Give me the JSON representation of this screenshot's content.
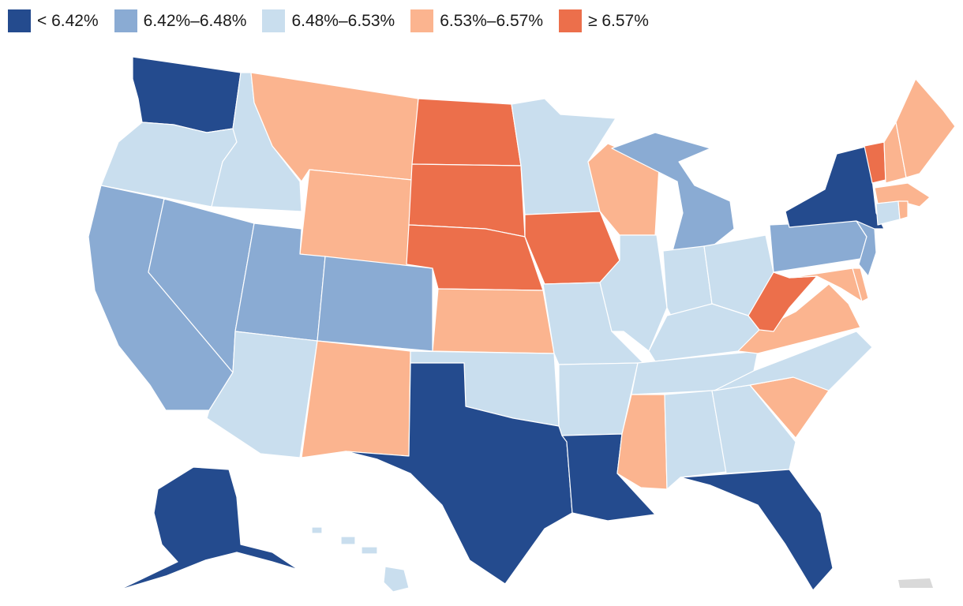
{
  "legend": [
    {
      "label": "< 6.42%",
      "color": "#244b8e"
    },
    {
      "label": "6.42%–6.48%",
      "color": "#8aabd3"
    },
    {
      "label": "6.48%–6.53%",
      "color": "#c9deee"
    },
    {
      "label": "6.53%–6.57%",
      "color": "#fbb48f"
    },
    {
      "label": "≥ 6.57%",
      "color": "#ec6f4b"
    }
  ],
  "territory_color": "#d9d9d9",
  "state_bins": {
    "WA": 0,
    "OR": 2,
    "CA": 1,
    "ID": 2,
    "NV": 1,
    "MT": 3,
    "WY": 3,
    "UT": 1,
    "AZ": 2,
    "CO": 1,
    "NM": 3,
    "ND": 4,
    "SD": 4,
    "NE": 4,
    "KS": 3,
    "OK": 2,
    "TX": 0,
    "MN": 2,
    "IA": 4,
    "MO": 2,
    "AR": 2,
    "LA": 0,
    "WI": 3,
    "IL": 2,
    "MI": 1,
    "IN": 2,
    "OH": 2,
    "KY": 2,
    "TN": 2,
    "MS": 3,
    "AL": 2,
    "GA": 2,
    "FL": 0,
    "SC": 3,
    "NC": 2,
    "VA": 3,
    "WV": 4,
    "MD": 3,
    "DE": 3,
    "PA": 1,
    "NJ": 1,
    "NY": 0,
    "CT": 2,
    "RI": 3,
    "MA": 3,
    "VT": 4,
    "NH": 3,
    "ME": 3,
    "AK": 0,
    "HI": 2
  }
}
